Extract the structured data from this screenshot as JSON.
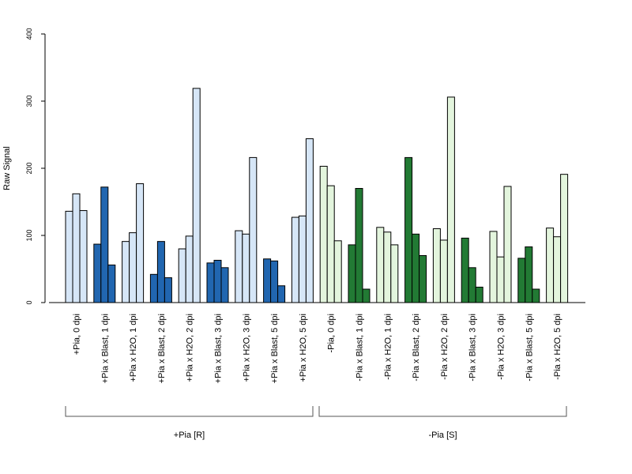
{
  "chart_data": {
    "type": "bar",
    "ylabel": "Raw Signal",
    "ylim": [
      0,
      400
    ],
    "yticks": [
      0,
      100,
      200,
      300,
      400
    ],
    "categories": [
      "+Pia, 0 dpi",
      "+Pia x Blast, 1 dpi",
      "+Pia x H2O, 1 dpi",
      "+Pia x Blast, 2 dpi",
      "+Pia x H2O, 2 dpi",
      "+Pia x Blast, 3 dpi",
      "+Pia x H2O, 3 dpi",
      "+Pia x Blast, 5 dpi",
      "+Pia x H2O, 5 dpi",
      "-Pia, 0 dpi",
      "-Pia x Blast, 1 dpi",
      "-Pia x H2O, 1 dpi",
      "-Pia x Blast, 2 dpi",
      "-Pia x H2O, 2 dpi",
      "-Pia x Blast, 3 dpi",
      "-Pia x H2O, 3 dpi",
      "-Pia x Blast, 5 dpi",
      "-Pia x H2O, 5 dpi"
    ],
    "values": [
      [
        136,
        162,
        137
      ],
      [
        87,
        172,
        56
      ],
      [
        91,
        104,
        177
      ],
      [
        42,
        91,
        37
      ],
      [
        80,
        99,
        319
      ],
      [
        59,
        63,
        52
      ],
      [
        107,
        102,
        216
      ],
      [
        65,
        62,
        25
      ],
      [
        127,
        129,
        244
      ],
      [
        203,
        174,
        92
      ],
      [
        86,
        170,
        20
      ],
      [
        112,
        105,
        86
      ],
      [
        216,
        102,
        70
      ],
      [
        110,
        93,
        306
      ],
      [
        96,
        52,
        23
      ],
      [
        106,
        68,
        173
      ],
      [
        66,
        83,
        20
      ],
      [
        111,
        98,
        191
      ]
    ],
    "bar_colors": [
      "#d6e6f7",
      "#2166b0",
      "#d6e6f7",
      "#2166b0",
      "#d6e6f7",
      "#2166b0",
      "#d6e6f7",
      "#2166b0",
      "#d6e6f7",
      "#e3f5dd",
      "#227a34",
      "#e3f5dd",
      "#227a34",
      "#e3f5dd",
      "#227a34",
      "#e3f5dd",
      "#227a34",
      "#e3f5dd"
    ],
    "groups": [
      {
        "label": "+Pia [R]",
        "start": 0,
        "end": 8
      },
      {
        "label": "-Pia [S]",
        "start": 9,
        "end": 17
      }
    ]
  }
}
